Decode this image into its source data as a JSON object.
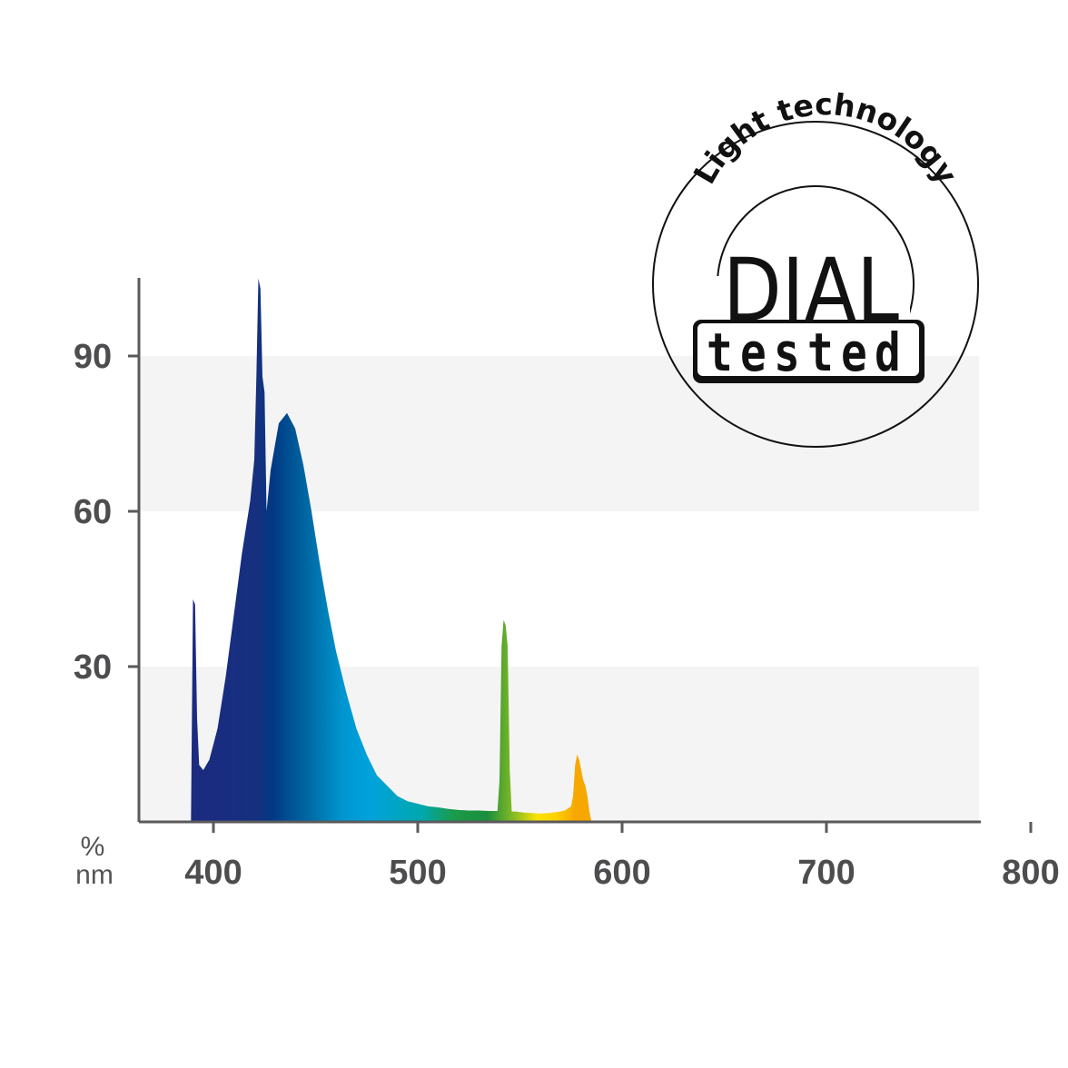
{
  "chart_data": {
    "type": "area",
    "title": "",
    "xlabel": "nm",
    "ylabel": "%",
    "xlim": [
      362,
      800
    ],
    "ylim": [
      0,
      100
    ],
    "x_ticks": [
      400,
      500,
      600,
      700,
      800
    ],
    "y_ticks": [
      30,
      60,
      90
    ],
    "grid": "alternating horizontal bands",
    "series": [
      {
        "x": [
          389,
          390,
          391,
          392,
          393,
          395,
          398,
          402,
          406,
          410,
          414,
          418,
          420,
          421,
          422,
          423,
          424,
          425,
          426,
          428,
          432,
          436,
          440,
          444,
          448,
          452,
          456,
          460,
          465,
          470,
          475,
          480,
          485,
          490,
          495,
          500,
          505,
          510,
          515,
          520,
          525,
          530,
          535,
          539,
          540,
          541,
          542,
          543,
          544,
          545,
          546,
          548,
          552,
          556,
          560,
          564,
          568,
          572,
          575,
          576,
          577,
          578,
          579,
          580,
          581,
          582,
          583,
          584,
          585
        ],
        "y": [
          0,
          43,
          42,
          20,
          11,
          10,
          12,
          18,
          28,
          40,
          52,
          62,
          70,
          86,
          105,
          103,
          86,
          83,
          60,
          68,
          77,
          79,
          76,
          69,
          60,
          50,
          41,
          33,
          25,
          18,
          13,
          9,
          7,
          5,
          4,
          3.5,
          3,
          2.8,
          2.5,
          2.3,
          2.2,
          2.2,
          2.1,
          2.1,
          8,
          34,
          39,
          38,
          34,
          10,
          2,
          2,
          1.8,
          1.7,
          1.6,
          1.7,
          1.9,
          2.2,
          3,
          5,
          11,
          13,
          12,
          10,
          8,
          7,
          5,
          2,
          0
        ]
      }
    ],
    "spectrum_colors": [
      "#1c2a80",
      "#15307f",
      "#003a84",
      "#00649f",
      "#0095cf",
      "#00a2dc",
      "#00a7ad",
      "#1b9b4b",
      "#1b8e3c",
      "#97c11f",
      "#f9e300",
      "#fcd100",
      "#f6a800"
    ]
  },
  "axis": {
    "y_unit": "%",
    "x_unit": "nm",
    "axis_color": "#5a5a5c",
    "band_color": "#f4f4f4"
  },
  "seal": {
    "ring_text": "Light technology",
    "brand": "DIAL",
    "badge": "tested"
  }
}
